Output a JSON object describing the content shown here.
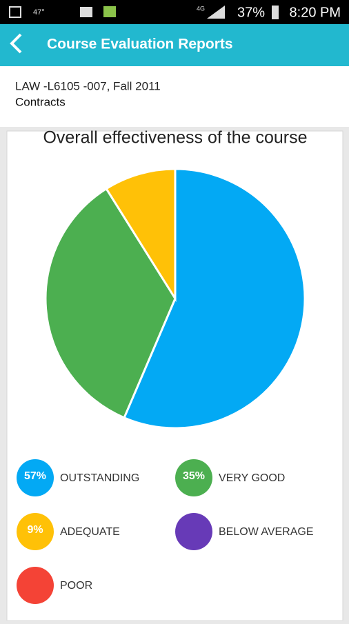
{
  "status_bar": {
    "temperature": "47°",
    "network": "4G",
    "battery": "37%",
    "time": "8:20 PM"
  },
  "header": {
    "title": "Course Evaluation Reports"
  },
  "course": {
    "code": "LAW -L6105 -007, Fall 2011",
    "name": "Contracts"
  },
  "chart_data": {
    "type": "pie",
    "title": "Overall effectiveness of the course",
    "categories": [
      "OUTSTANDING",
      "VERY GOOD",
      "ADEQUATE",
      "BELOW AVERAGE",
      "POOR"
    ],
    "values": [
      57,
      35,
      9,
      0,
      0
    ],
    "value_labels": [
      "57%",
      "35%",
      "9%",
      null,
      null
    ],
    "colors": [
      "#03a9f4",
      "#4caf50",
      "#ffc107",
      "#673ab7",
      "#f44336"
    ]
  }
}
